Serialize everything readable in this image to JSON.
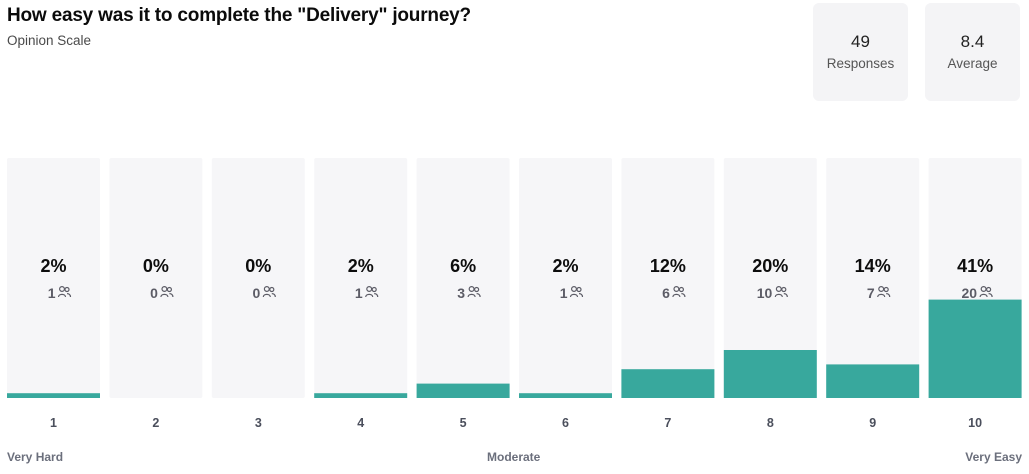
{
  "question": {
    "title": "How easy was it to complete the \"Delivery\" journey?",
    "type_label": "Opinion Scale"
  },
  "stats": {
    "responses": {
      "value": "49",
      "label": "Responses"
    },
    "average": {
      "value": "8.4",
      "label": "Average"
    }
  },
  "scale_labels": {
    "left": "Very Hard",
    "middle": "Moderate",
    "right": "Very Easy"
  },
  "colors": {
    "bar": "#38a89d",
    "bucket_background": "#f6f6f8"
  },
  "icons": {
    "count": "people-icon"
  },
  "chart_data": {
    "type": "bar",
    "categories": [
      "1",
      "2",
      "3",
      "4",
      "5",
      "6",
      "7",
      "8",
      "9",
      "10"
    ],
    "values": [
      2,
      0,
      0,
      2,
      6,
      2,
      12,
      20,
      14,
      41
    ],
    "value_labels": [
      "2%",
      "0%",
      "0%",
      "2%",
      "6%",
      "2%",
      "12%",
      "20%",
      "14%",
      "41%"
    ],
    "counts": [
      1,
      0,
      0,
      1,
      3,
      1,
      6,
      10,
      7,
      20
    ],
    "ylim": [
      0,
      100
    ],
    "xlabel": "",
    "ylabel": "",
    "grid": false
  }
}
